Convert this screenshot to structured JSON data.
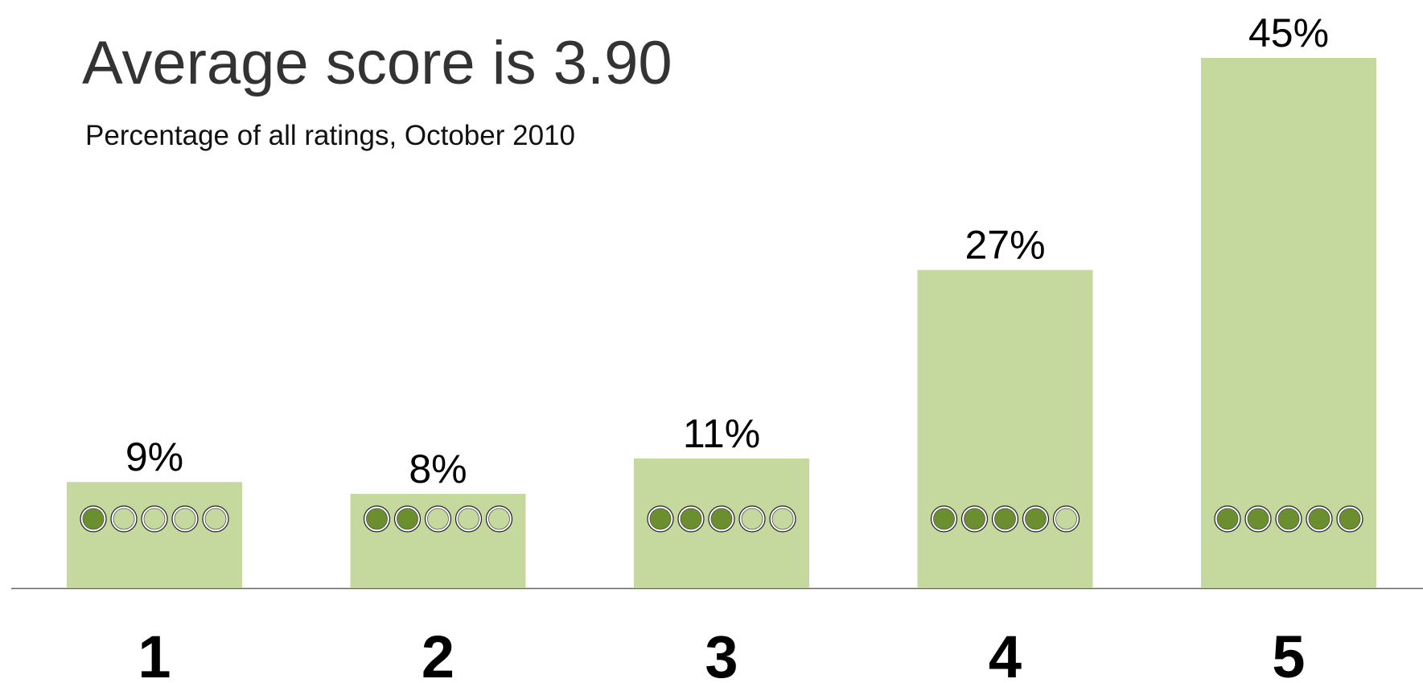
{
  "chart_data": {
    "type": "bar",
    "title": "Average score is 3.90",
    "subtitle": "Percentage of all ratings, October 2010",
    "categories": [
      "1",
      "2",
      "3",
      "4",
      "5"
    ],
    "values": [
      9,
      8,
      11,
      27,
      45
    ],
    "value_labels": [
      "9%",
      "8%",
      "11%",
      "27%",
      "45%"
    ],
    "color": "#c5d89e"
  }
}
